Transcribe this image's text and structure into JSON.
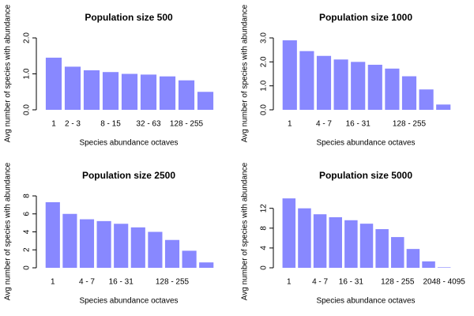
{
  "chart_data": [
    {
      "type": "bar",
      "title": "Population size 500",
      "xlabel": "Species abundance octaves",
      "ylabel": "Avg number of species with abundance",
      "color": "#8888ff",
      "categories": [
        "1",
        "2 - 3",
        null,
        "8 - 15",
        null,
        "32 - 63",
        null,
        "128 - 255",
        null
      ],
      "values": [
        1.45,
        1.2,
        1.1,
        1.05,
        1.0,
        0.98,
        0.93,
        0.82,
        0.5
      ],
      "ylim": [
        0,
        2
      ],
      "yticks": [
        {
          "value": 0,
          "label": "0.0"
        },
        {
          "value": 1,
          "label": "1.0"
        },
        {
          "value": 2,
          "label": "2.0"
        }
      ]
    },
    {
      "type": "bar",
      "title": "Population size 1000",
      "xlabel": "Species abundance octaves",
      "ylabel": "Avg number of species with abundance",
      "color": "#8888ff",
      "categories": [
        "1",
        null,
        "4 - 7",
        null,
        "16 - 31",
        null,
        null,
        "128 - 255",
        null,
        null
      ],
      "values": [
        2.9,
        2.45,
        2.25,
        2.1,
        2.0,
        1.88,
        1.72,
        1.4,
        0.85,
        0.22
      ],
      "ylim": [
        0,
        3
      ],
      "yticks": [
        {
          "value": 0,
          "label": "0.0"
        },
        {
          "value": 1,
          "label": "1.0"
        },
        {
          "value": 2,
          "label": "2.0"
        },
        {
          "value": 3,
          "label": "3.0"
        }
      ]
    },
    {
      "type": "bar",
      "title": "Population size 2500",
      "xlabel": "Species abundance octaves",
      "ylabel": "Avg number of species with abundance",
      "color": "#8888ff",
      "categories": [
        "1",
        null,
        "4 - 7",
        null,
        "16 - 31",
        null,
        null,
        "128 - 255",
        null,
        null
      ],
      "values": [
        7.3,
        6.0,
        5.4,
        5.2,
        4.9,
        4.5,
        4.0,
        3.1,
        1.9,
        0.6
      ],
      "ylim": [
        0,
        8
      ],
      "yticks": [
        0,
        2,
        4,
        6,
        8
      ]
    },
    {
      "type": "bar",
      "title": "Population size 5000",
      "xlabel": "Species abundance octaves",
      "ylabel": "Avg number of species with abundance",
      "color": "#8888ff",
      "categories": [
        "1",
        null,
        "4 - 7",
        null,
        "16 - 31",
        null,
        null,
        "128 - 255",
        null,
        null,
        "2048 - 4095"
      ],
      "values": [
        14,
        12,
        10.8,
        10.2,
        9.6,
        8.9,
        7.8,
        6.2,
        3.8,
        1.3,
        0.1
      ],
      "ylim": [
        0,
        14.5
      ],
      "yticks": [
        0,
        4,
        8,
        12
      ]
    }
  ]
}
